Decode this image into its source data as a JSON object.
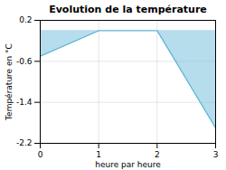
{
  "chart_data": {
    "type": "area",
    "title": "Evolution de la température",
    "xlabel": "heure par heure",
    "ylabel": "Température en °C",
    "x": [
      0,
      1,
      2,
      3
    ],
    "values": [
      -0.5,
      0.0,
      0.0,
      -1.9
    ],
    "color": "#5ab4d4",
    "xlim": [
      0,
      3
    ],
    "ylim": [
      -2.2,
      0.2
    ],
    "xticks": [
      0,
      1,
      2,
      3
    ],
    "yticks": [
      0.2,
      -0.6,
      -1.4,
      -2.2
    ],
    "grid": true
  }
}
